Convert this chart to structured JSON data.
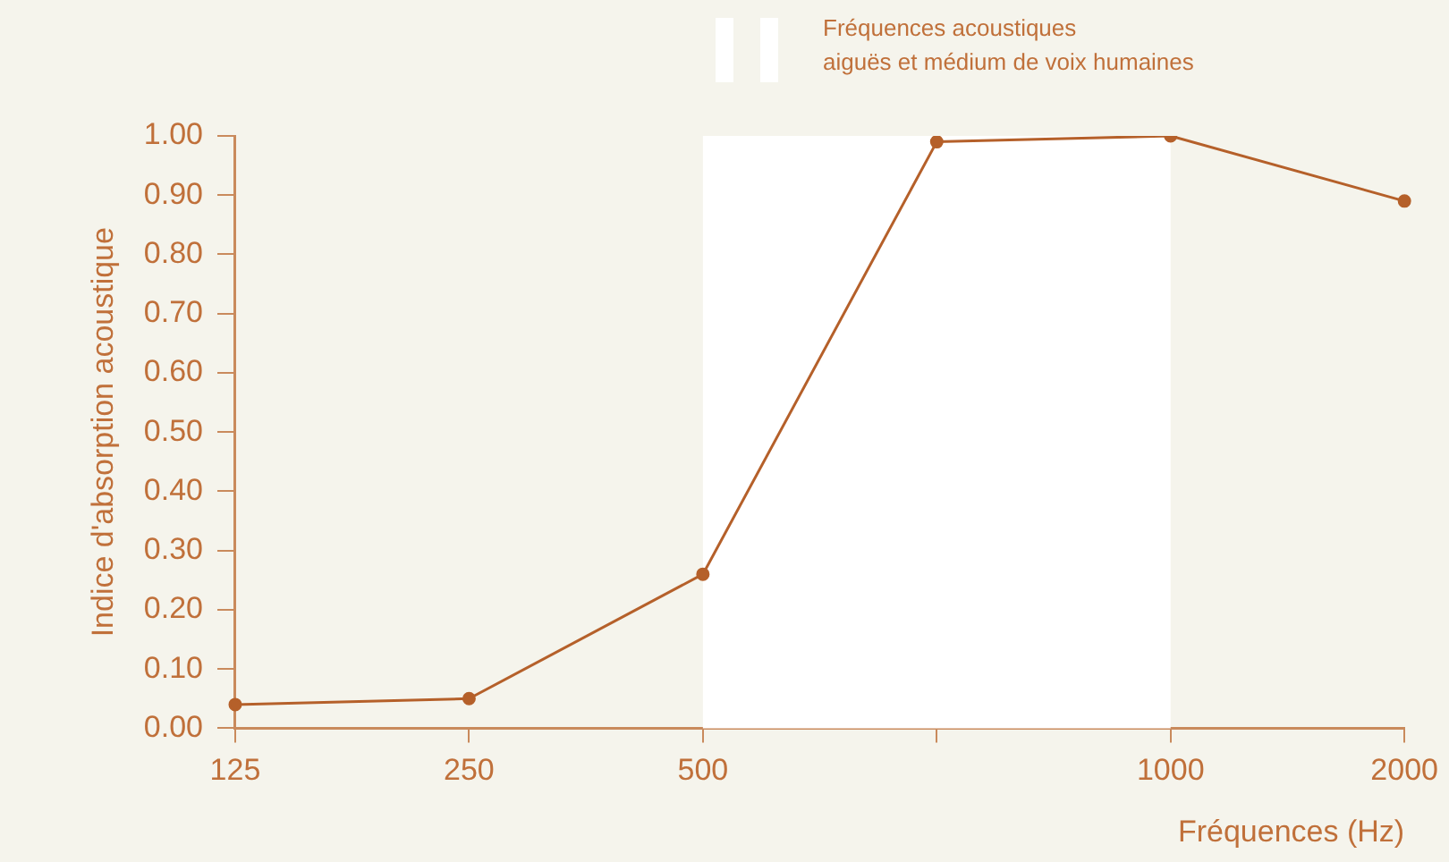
{
  "chart_data": {
    "type": "line",
    "xlabel": "Fréquences (Hz)",
    "ylabel": "Indice d'absorption acoustique",
    "categories": [
      "125",
      "250",
      "500",
      null,
      "1000",
      "2000"
    ],
    "series": [
      {
        "color": "#b5602a",
        "values": [
          0.04,
          0.05,
          0.26,
          0.99,
          1.0,
          0.89
        ]
      }
    ],
    "ylim": [
      0,
      1
    ],
    "yticks": [
      {
        "value": 0,
        "label": "0.00"
      },
      {
        "value": 0.1,
        "label": "0.10"
      },
      {
        "value": 0.2,
        "label": "0.20"
      },
      {
        "value": 0.3,
        "label": "0.30"
      },
      {
        "value": 0.4,
        "label": "0.40"
      },
      {
        "value": 0.5,
        "label": "0.50"
      },
      {
        "value": 0.6,
        "label": "0.60"
      },
      {
        "value": 0.7,
        "label": "0.70"
      },
      {
        "value": 0.8,
        "label": "0.80"
      },
      {
        "value": 0.9,
        "label": "0.90"
      },
      {
        "value": 1,
        "label": "1.00"
      }
    ],
    "bands": [
      {
        "axis": "x",
        "from": "500",
        "to": "1000",
        "label": "Fréquences acoustiques\naiguës et médium de voix humaines",
        "color": "#ffffff"
      }
    ],
    "marker": "circle",
    "line_style": "solid",
    "grid": false,
    "legend": false
  }
}
